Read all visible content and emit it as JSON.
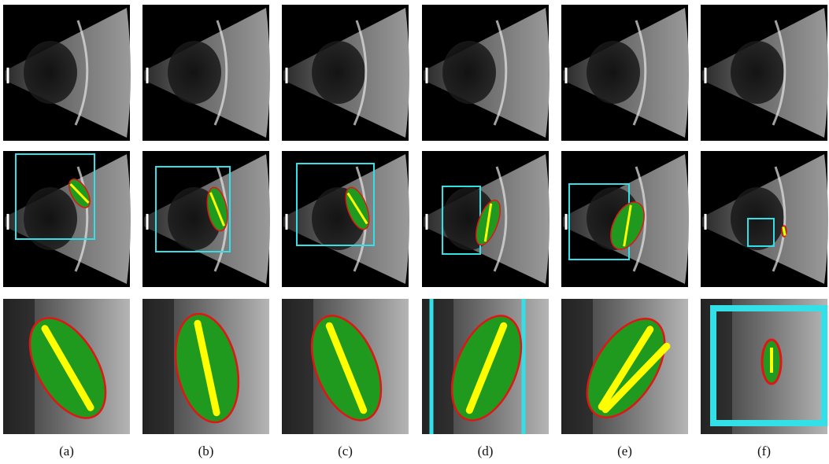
{
  "figure": {
    "captions": [
      "(a)",
      "(b)",
      "(c)",
      "(d)",
      "(e)",
      "(f)"
    ],
    "rows": [
      "ultrasound-original",
      "ultrasound-with-detection",
      "zoomed-segmentation"
    ],
    "colors": {
      "panel_background": "#000000",
      "detection_box": "#33e0e8",
      "lesion_fill": "#1f9a1f",
      "lesion_contour": "#e21414",
      "axis_line": "#ffff00",
      "tissue_light": "#bdbdbd"
    },
    "icons": [
      "ultrasound-fan-image",
      "bounding-box",
      "segmentation-mask"
    ]
  }
}
